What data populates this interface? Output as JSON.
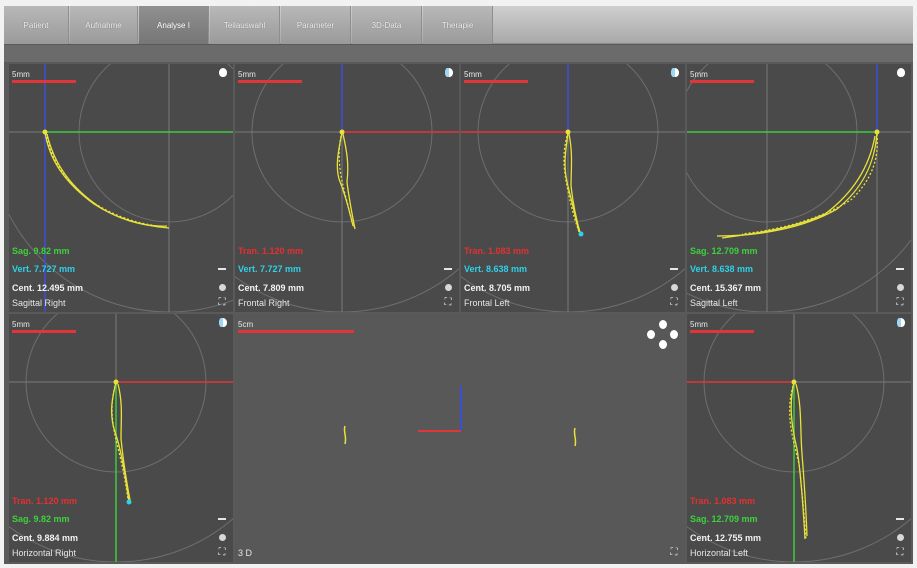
{
  "tabs": [
    {
      "label": "Patient",
      "active": false
    },
    {
      "label": "Aufnahme",
      "active": false
    },
    {
      "label": "Analyse I",
      "active": true
    },
    {
      "label": "Teilauswahl",
      "active": false
    },
    {
      "label": "Parameter",
      "active": false
    },
    {
      "label": "3D-Data",
      "active": false
    },
    {
      "label": "Therapie",
      "active": false
    }
  ],
  "colors": {
    "trace": "#e8e23a",
    "axis_red": "#e0363a",
    "axis_green": "#3ec93e",
    "axis_blue": "#3a4fd8",
    "axis_white": "#dcdcdc",
    "panel_bg": "#4a4a4a"
  },
  "panels": {
    "sagittal_right": {
      "title": "Sagittal Right",
      "scale": "5mm",
      "readouts": [
        {
          "text": "Sag. 9.82 mm",
          "color": "green"
        },
        {
          "text": "Vert. 7.727 mm",
          "color": "cyan"
        },
        {
          "text": "Cent. 12.495 mm",
          "color": "white"
        }
      ],
      "icons": [
        "head-icon",
        "minus-icon",
        "dot-icon",
        "expand-icon"
      ]
    },
    "frontal_right": {
      "title": "Frontal Right",
      "scale": "5mm",
      "readouts": [
        {
          "text": "Tran. 1.120 mm",
          "color": "red"
        },
        {
          "text": "Vert. 7.727 mm",
          "color": "cyan"
        },
        {
          "text": "Cent. 7.809 mm",
          "color": "white"
        }
      ],
      "icons": [
        "head-icon",
        "minus-icon",
        "dot-icon",
        "expand-icon"
      ]
    },
    "frontal_left": {
      "title": "Frontal Left",
      "scale": "5mm",
      "readouts": [
        {
          "text": "Tran. 1.083 mm",
          "color": "red"
        },
        {
          "text": "Vert. 8.638 mm",
          "color": "cyan"
        },
        {
          "text": "Cent. 8.705 mm",
          "color": "white"
        }
      ],
      "icons": [
        "head-icon",
        "minus-icon",
        "dot-icon",
        "expand-icon"
      ]
    },
    "sagittal_left": {
      "title": "Sagittal Left",
      "scale": "5mm",
      "readouts": [
        {
          "text": "Sag. 12.709 mm",
          "color": "green"
        },
        {
          "text": "Vert. 8.638 mm",
          "color": "cyan"
        },
        {
          "text": "Cent. 15.367 mm",
          "color": "white"
        }
      ],
      "icons": [
        "head-icon",
        "minus-icon",
        "dot-icon",
        "expand-icon"
      ]
    },
    "horizontal_right": {
      "title": "Horizontal Right",
      "scale": "5mm",
      "readouts": [
        {
          "text": "Tran. 1.120 mm",
          "color": "red"
        },
        {
          "text": "Sag. 9.82 mm",
          "color": "green"
        },
        {
          "text": "Cent. 9.884 mm",
          "color": "white"
        }
      ],
      "icons": [
        "head-icon",
        "minus-icon",
        "dot-icon",
        "expand-icon"
      ]
    },
    "view_3d": {
      "title": "3 D",
      "scale": "5cm",
      "icons": [
        "multi-head-icon",
        "expand-icon"
      ]
    },
    "horizontal_left": {
      "title": "Horizontal Left",
      "scale": "5mm",
      "readouts": [
        {
          "text": "Tran. 1.083 mm",
          "color": "red"
        },
        {
          "text": "Sag. 12.709 mm",
          "color": "green"
        },
        {
          "text": "Cent. 12.755 mm",
          "color": "white"
        }
      ],
      "icons": [
        "head-icon",
        "minus-icon",
        "dot-icon",
        "expand-icon"
      ]
    }
  }
}
